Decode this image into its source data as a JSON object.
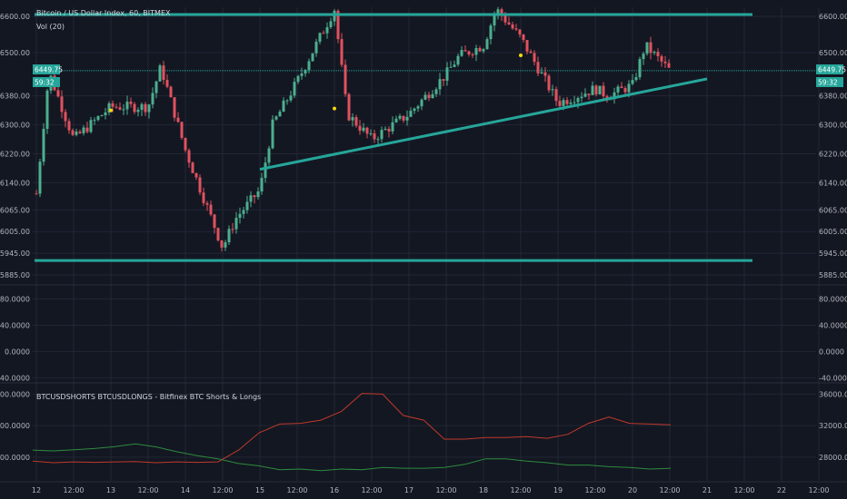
{
  "header": {
    "symbol_title": "Bitcoin / US Dollar Index, 60, BITMEX",
    "volume_label": "Vol (20)"
  },
  "price_badges": {
    "last_price": "6449.75",
    "countdown": "59:32"
  },
  "indicator": {
    "title": "BTCUSDSHORTS BTCUSDLONGS - Bitfinex BTC Shorts & Longs"
  },
  "colors": {
    "background": "#131722",
    "up_candle": "#4caf8f",
    "down_candle": "#e0525f",
    "trendline": "#26a69a",
    "shorts_line": "#c0392b",
    "longs_line": "#2e8b3e",
    "grid": "#232735",
    "marker": "#f5d90a"
  },
  "chart_data": [
    {
      "type": "candlestick",
      "symbol": "Bitcoin / US Dollar Index",
      "interval": "60",
      "exchange": "BITMEX",
      "y_ticks": [
        5885,
        5945,
        6005,
        6065,
        6140,
        6220,
        6300,
        6380,
        6449.75,
        6500,
        6600
      ],
      "y_tick_labels": [
        "5885.00",
        "5945.00",
        "6005.00",
        "6065.00",
        "6140.00",
        "6220.00",
        "6300.00",
        "6380.00",
        "6449.75",
        "6500.00",
        "6600.00"
      ],
      "ylim": [
        5860,
        6625
      ],
      "x_tick_labels": [
        "12",
        "12:00",
        "13",
        "12:00",
        "14",
        "12:00",
        "15",
        "12:00",
        "16",
        "12:00",
        "17",
        "12:00",
        "18",
        "12:00",
        "19",
        "12:00",
        "20",
        "12:00",
        "21",
        "12:00",
        "22",
        "12:00"
      ],
      "key_points": [
        {
          "x": "12",
          "close": 6110
        },
        {
          "x": "12",
          "close": 6445
        },
        {
          "x": "12 12:00",
          "close": 6260
        },
        {
          "x": "13",
          "close": 6350
        },
        {
          "x": "13 12:00",
          "close": 6350
        },
        {
          "x": "13 12:00",
          "close": 6460
        },
        {
          "x": "14",
          "close": 6230
        },
        {
          "x": "14 12:00",
          "close": 5960
        },
        {
          "x": "14 12:00",
          "close": 6040
        },
        {
          "x": "15",
          "close": 6120
        },
        {
          "x": "15",
          "close": 6300
        },
        {
          "x": "15 12:00",
          "close": 6420
        },
        {
          "x": "16",
          "close": 6620
        },
        {
          "x": "16",
          "close": 6330
        },
        {
          "x": "16 12:00",
          "close": 6260
        },
        {
          "x": "17",
          "close": 6330
        },
        {
          "x": "17 12:00",
          "close": 6440
        },
        {
          "x": "17 12:00",
          "close": 6490
        },
        {
          "x": "18",
          "close": 6520
        },
        {
          "x": "18",
          "close": 6620
        },
        {
          "x": "18 12:00",
          "close": 6540
        },
        {
          "x": "19",
          "close": 6360
        },
        {
          "x": "19 12:00",
          "close": 6400
        },
        {
          "x": "19 12:00",
          "close": 6380
        },
        {
          "x": "20",
          "close": 6410
        },
        {
          "x": "20",
          "close": 6520
        },
        {
          "x": "20 12:00",
          "close": 6449.75
        }
      ],
      "horizontal_levels": [
        6605,
        5925
      ],
      "trendlines": [
        {
          "from": {
            "x": "15",
            "y": 6177
          },
          "to": {
            "x": "21",
            "y": 6427
          }
        }
      ],
      "markers": [
        {
          "x": "13",
          "y": 6340
        },
        {
          "x": "16",
          "y": 6345
        },
        {
          "x": "18 12:00",
          "y": 6492
        }
      ]
    },
    {
      "type": "line",
      "title": "",
      "y_ticks": [
        -40,
        0,
        40,
        80
      ],
      "y_tick_labels": [
        "-40.0000",
        "0.0000",
        "40.0000",
        "80.0000"
      ],
      "ylim": [
        -45,
        100
      ],
      "series": []
    },
    {
      "type": "line",
      "title": "BTCUSDSHORTS BTCUSDLONGS - Bitfinex BTC Shorts & Longs",
      "y_ticks": [
        28000,
        32000,
        36000
      ],
      "y_tick_labels": [
        "28000.0000",
        "32000.0000",
        "36000.0000"
      ],
      "ylim": [
        25000,
        37200
      ],
      "series": [
        {
          "values": [
            27500,
            27300,
            27400,
            27350,
            27400,
            27450,
            27300,
            27400,
            27350,
            27400,
            28900,
            31100,
            32200,
            32300,
            32700,
            33800,
            36100,
            36000,
            33300,
            32700,
            30300,
            30300,
            30500,
            30500,
            30600,
            30400,
            30900,
            32300,
            33100,
            32300,
            32200,
            32100
          ]
        },
        {
          "values": [
            28900,
            28800,
            28950,
            29100,
            29350,
            29700,
            29300,
            28700,
            28200,
            27800,
            27200,
            26900,
            26400,
            26500,
            26300,
            26500,
            26400,
            26700,
            26600,
            26600,
            26700,
            27100,
            27800,
            27800,
            27500,
            27300,
            27000,
            27000,
            26800,
            26700,
            26500,
            26600
          ]
        }
      ]
    }
  ]
}
